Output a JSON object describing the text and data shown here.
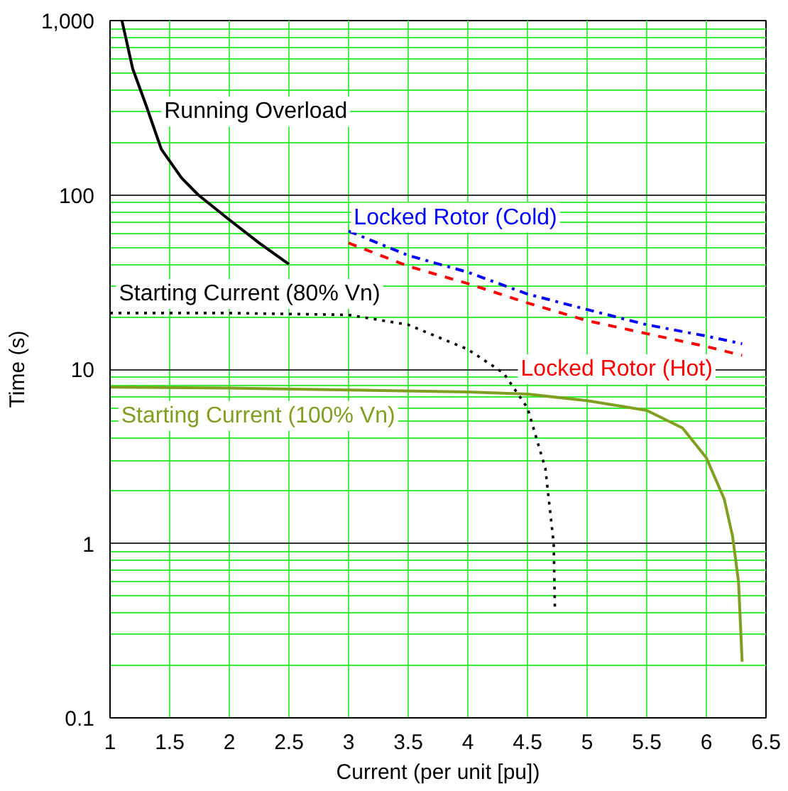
{
  "chart_data": {
    "type": "line",
    "xlabel": "Current (per unit [pu])",
    "ylabel": "Time (s)",
    "log": "y",
    "grid": true,
    "xlim": [
      1,
      6.5
    ],
    "xticks": [
      1,
      1.5,
      2,
      2.5,
      3,
      3.5,
      4,
      4.5,
      5,
      5.5,
      6,
      6.5
    ],
    "ylim": [
      0.1,
      1000
    ],
    "yticks": [
      {
        "value": 0.1,
        "label": "0.1"
      },
      1,
      10,
      100,
      {
        "value": 1000,
        "label": "1,000"
      }
    ],
    "series": [
      {
        "name": "Running Overload",
        "color": "#000000",
        "line_style": "solid",
        "x": [
          1.1,
          1.19,
          1.3,
          1.43,
          1.6,
          1.74,
          2.0,
          2.25,
          2.5
        ],
        "values": [
          1000,
          530,
          330,
          183,
          125,
          100,
          72,
          53,
          40
        ]
      },
      {
        "name": "Locked Rotor (Cold)",
        "color": "#0000ff",
        "line_style": "dashdot",
        "x": [
          3,
          3.5,
          4,
          4.5,
          5,
          5.5,
          6,
          6.3
        ],
        "values": [
          62,
          45,
          36,
          27,
          22,
          18,
          15.5,
          14
        ]
      },
      {
        "name": "Locked Rotor (Hot)",
        "color": "#ff0000",
        "line_style": "dashed",
        "x": [
          3,
          3.5,
          4,
          4.5,
          5,
          5.5,
          6,
          6.3
        ],
        "values": [
          53,
          39,
          31,
          24,
          19,
          16,
          13.5,
          12
        ]
      },
      {
        "name": "Starting Current (80% Vn)",
        "color": "#000000",
        "line_style": "dotted",
        "x": [
          1,
          2,
          3,
          3.5,
          4,
          4.3,
          4.5,
          4.65,
          4.72,
          4.73
        ],
        "values": [
          21,
          21,
          20.5,
          18,
          13,
          9.5,
          6,
          2.7,
          1,
          0.42
        ]
      },
      {
        "name": "Starting Current (100% Vn)",
        "color": "#7f9f1f",
        "line_style": "solid",
        "x": [
          1,
          2,
          3,
          4,
          4.5,
          5,
          5.5,
          5.8,
          6,
          6.15,
          6.22,
          6.27,
          6.3
        ],
        "values": [
          7.9,
          7.8,
          7.6,
          7.4,
          7.2,
          6.6,
          5.8,
          4.6,
          3.1,
          1.8,
          1.1,
          0.6,
          0.21
        ]
      }
    ]
  }
}
